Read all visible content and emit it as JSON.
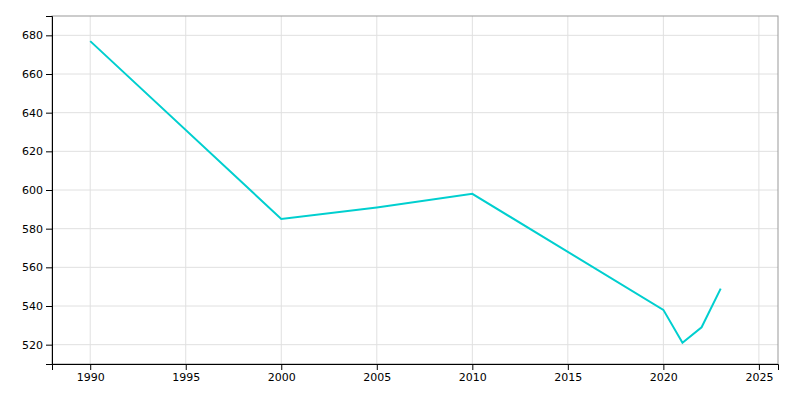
{
  "chart_data": {
    "type": "line",
    "x": [
      1990,
      2000,
      2005,
      2010,
      2020,
      2021,
      2022,
      2023
    ],
    "values": [
      677,
      585,
      591,
      598,
      538,
      521,
      529,
      549
    ],
    "color": "#00CFCF",
    "xlim": [
      1988,
      2026
    ],
    "ylim": [
      510,
      690
    ],
    "xticks": [
      1990,
      1995,
      2000,
      2005,
      2010,
      2015,
      2020,
      2025
    ],
    "yticks": [
      520,
      540,
      560,
      580,
      600,
      620,
      640,
      660,
      680
    ],
    "grid": true
  }
}
